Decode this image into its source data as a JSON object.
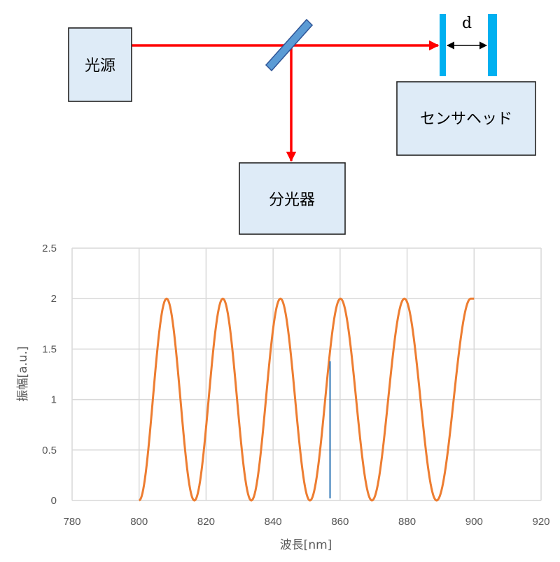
{
  "diagram": {
    "light_source_label": "光源",
    "sensor_head_label": "センサヘッド",
    "spectrometer_label": "分光器",
    "gap_label": "d",
    "colors": {
      "beam": "#ff0000",
      "mirror": "#5b9bd5",
      "plates": "#00b0f0",
      "box_fill": "#deebf7"
    }
  },
  "chart_data": {
    "type": "line",
    "title": "",
    "xlabel": "波長[nm]",
    "ylabel": "振幅[a.u.]",
    "xlim": [
      780,
      920
    ],
    "ylim": [
      0,
      2.5
    ],
    "xticks": [
      780,
      800,
      820,
      840,
      860,
      880,
      900,
      920
    ],
    "yticks": [
      0,
      0.5,
      1,
      1.5,
      2,
      2.5
    ],
    "ytick_labels": [
      "0",
      "0.5",
      "1",
      "1.5",
      "2",
      "2.5"
    ],
    "grid": true,
    "series": [
      {
        "color": "#ed7d31",
        "x_range": [
          800,
          900
        ],
        "minima": [
          800,
          816.5,
          833.5,
          851,
          869.5,
          888.8
        ],
        "maxima": [
          808.2,
          825,
          842.2,
          860.1,
          879.2,
          899
        ]
      }
    ],
    "marker_line": {
      "x": 857,
      "y_range": [
        0,
        1.38
      ],
      "color": "#2e75b6"
    }
  }
}
